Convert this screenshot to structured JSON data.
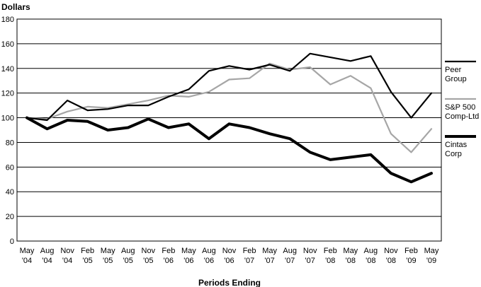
{
  "chart_data": {
    "type": "line",
    "ylabel": "Dollars",
    "xlabel": "Periods Ending",
    "ylim": [
      0,
      180
    ],
    "yticks": [
      0,
      20,
      40,
      60,
      80,
      100,
      120,
      140,
      160,
      180
    ],
    "grid": "horizontal",
    "legend_position": "right",
    "categories": [
      [
        "May",
        "'04"
      ],
      [
        "Aug",
        "'04"
      ],
      [
        "Nov",
        "'04"
      ],
      [
        "Feb",
        "'05"
      ],
      [
        "May",
        "'05"
      ],
      [
        "Aug",
        "'05"
      ],
      [
        "Nov",
        "'05"
      ],
      [
        "Feb",
        "'06"
      ],
      [
        "May",
        "'06"
      ],
      [
        "Aug",
        "'06"
      ],
      [
        "Nov",
        "'06"
      ],
      [
        "Feb",
        "'07"
      ],
      [
        "May",
        "'07"
      ],
      [
        "Aug",
        "'07"
      ],
      [
        "Nov",
        "'07"
      ],
      [
        "Feb",
        "'08"
      ],
      [
        "May",
        "'08"
      ],
      [
        "Aug",
        "'08"
      ],
      [
        "Nov",
        "'08"
      ],
      [
        "Feb",
        "'09"
      ],
      [
        "May",
        "'09"
      ]
    ],
    "series": [
      {
        "name_lines": [
          "Peer",
          "Group"
        ],
        "color": "#000000",
        "weight": "medium",
        "values": [
          100,
          98,
          114,
          106,
          107,
          110,
          110,
          117,
          123,
          138,
          142,
          139,
          143,
          138,
          152,
          149,
          146,
          150,
          121,
          100,
          120
        ]
      },
      {
        "name_lines": [
          "S&P 500",
          "Comp-Ltd"
        ],
        "color": "#a6a6a6",
        "weight": "medium",
        "values": [
          100,
          99,
          105,
          109,
          108,
          111,
          114,
          118,
          117,
          121,
          131,
          132,
          144,
          139,
          141,
          127,
          134,
          124,
          87,
          72,
          91
        ]
      },
      {
        "name_lines": [
          "Cintas",
          "Corp"
        ],
        "color": "#000000",
        "weight": "heavy",
        "values": [
          100,
          91,
          98,
          97,
          90,
          92,
          99,
          92,
          95,
          83,
          95,
          92,
          87,
          83,
          72,
          66,
          68,
          70,
          55,
          48,
          55
        ]
      }
    ]
  }
}
